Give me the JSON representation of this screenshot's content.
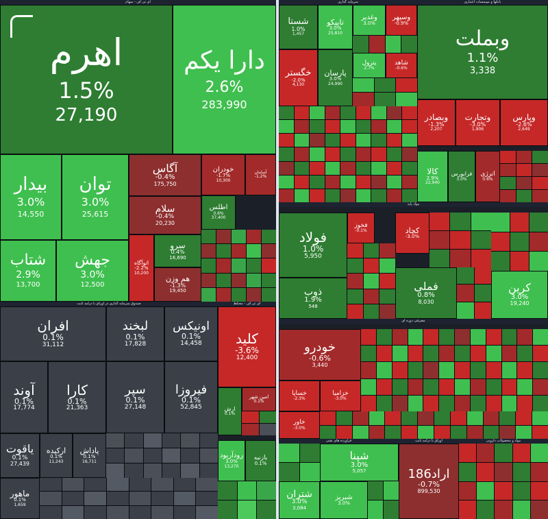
{
  "sections": {
    "top_left": "ای تی اف - سهام",
    "top_right": "بانکها و موسسات اعتباری",
    "top_mid": "سرمایه گذاری",
    "funds": "صندوق سرمایه گذاری در اوراق با درآمد ثابت",
    "base_metals": "فلزات اساسی",
    "car": "خودرو و ساخت قطعات",
    "chemicals": "محصولات شیمیایی",
    "mid_center": "مواد پایه",
    "oil": "فراورده های نفتی",
    "iron": "آهن و فولاد",
    "consumer": "مصرفی دوره ای",
    "fixed": "اوراق با درآمد ثابت",
    "cement": "سیمان، آهک و گچ",
    "pharma": "مواد و محصولات دارویی",
    "etf2": "ای تی اف - مختلط"
  },
  "tiles": {
    "ahrom": {
      "name": "اهرم",
      "pct": "1.5%",
      "val": "27,190"
    },
    "daraykom": {
      "name": "دارا یکم",
      "pct": "2.6%",
      "val": "283,990"
    },
    "bidar": {
      "name": "بیدار",
      "pct": "3.0%",
      "val": "14,550"
    },
    "tavan": {
      "name": "توان",
      "pct": "3.0%",
      "val": "25,615"
    },
    "shetab": {
      "name": "شتاب",
      "pct": "2.9%",
      "val": "13,700"
    },
    "jahesh": {
      "name": "جهش",
      "pct": "3.0%",
      "val": "12,500"
    },
    "agas": {
      "name": "آگاس",
      "pct": "-0.4%",
      "val": "175,750"
    },
    "salam": {
      "name": "سلام",
      "pct": "-0.4%",
      "val": "20,230"
    },
    "sarv": {
      "name": "سرو",
      "pct": "0.4%",
      "val": "16,690"
    },
    "hamvazn": {
      "name": "هم وزن",
      "pct": "-1.3%",
      "val": "19,450"
    },
    "atogah": {
      "name": "اتوآگاه",
      "pct": "-2.2%",
      "val": "10,200"
    },
    "khodran": {
      "name": "خودران",
      "pct": "-1.7%",
      "val": "10,300"
    },
    "atlas": {
      "name": "اطلس",
      "pct": "0.6%",
      "val": "37,400"
    },
    "kamand_bz": {
      "name": "آسامان",
      "pct": "-1.2%",
      "val": ""
    },
    "afran": {
      "name": "افران",
      "pct": "0.1%",
      "val": "31,112"
    },
    "labkhand": {
      "name": "لبخند",
      "pct": "0.1%",
      "val": "17,828"
    },
    "onyx": {
      "name": "اونیکس",
      "pct": "0.1%",
      "val": "14,458"
    },
    "avand": {
      "name": "آوند",
      "pct": "0.1%",
      "val": "17,774"
    },
    "kara": {
      "name": "کارا",
      "pct": "0.1%",
      "val": "21,363"
    },
    "separ": {
      "name": "سپر",
      "pct": "0.1%",
      "val": "27,148"
    },
    "firoza": {
      "name": "فیروزا",
      "pct": "0.1%",
      "val": "52,845"
    },
    "yaqut": {
      "name": "یاقوت",
      "pct": "0.1%",
      "val": "27,439"
    },
    "arkideh": {
      "name": "ارکیده",
      "pct": "0.1%",
      "val": "11,243"
    },
    "padash": {
      "name": "پاداش",
      "pct": "0.1%",
      "val": "16,711"
    },
    "mahour": {
      "name": "ماهور",
      "pct": "0.1%",
      "val": "1,659"
    },
    "kalid": {
      "name": "کلید",
      "pct": "-3.6%",
      "val": "12,400"
    },
    "vebmelat": {
      "name": "وبملت",
      "pct": "1.1%",
      "val": "3,338"
    },
    "shasta": {
      "name": "شستا",
      "pct": "1.0%",
      "val": "1,457"
    },
    "tapiko": {
      "name": "تاپیکو",
      "pct": "3.0%",
      "val": "25,810"
    },
    "vaghdir": {
      "name": "وغدیر",
      "pct": "3.0%",
      "val": ""
    },
    "vasepeh": {
      "name": "وسپهر",
      "pct": "-0.9%",
      "val": ""
    },
    "khgostar": {
      "name": "خگستر",
      "pct": "-2.0%",
      "val": "4,130"
    },
    "parsan": {
      "name": "پارسان",
      "pct": "3.0%",
      "val": "24,990"
    },
    "tepetrol": {
      "name": "پترول",
      "pct": "2.7%",
      "val": ""
    },
    "shabandar": {
      "name": "شاهد",
      "pct": "-0.6%",
      "val": ""
    },
    "vebsader": {
      "name": "وبصادر",
      "pct": "-1.3%",
      "val": "2,207"
    },
    "vtejarat": {
      "name": "وتجارت",
      "pct": "-3.0%",
      "val": "1,906"
    },
    "vpars": {
      "name": "وپارس",
      "pct": "-2.6%",
      "val": "2,649"
    },
    "kala": {
      "name": "کالا",
      "pct": "2.9%",
      "val": "22,940"
    },
    "farabours": {
      "name": "فرابورس",
      "pct": "3.0%",
      "val": ""
    },
    "anrzhi": {
      "name": "انرژی",
      "pct": "0.6%",
      "val": ""
    },
    "foolad": {
      "name": "فولاد",
      "pct": "1.0%",
      "val": "5,950"
    },
    "fakhor": {
      "name": "فخوز",
      "pct": "-0.1%",
      "val": ""
    },
    "kegadeh": {
      "name": "کچاد",
      "pct": "-3.0%",
      "val": ""
    },
    "zob": {
      "name": "ذوب",
      "pct": "1.9%",
      "val": "548"
    },
    "femeli": {
      "name": "فملی",
      "pct": "0.8%",
      "val": "8,030"
    },
    "karin": {
      "name": "کرین",
      "pct": "3.0%",
      "val": "19,240"
    },
    "khodro": {
      "name": "خودرو",
      "pct": "-0.6%",
      "val": "3,440"
    },
    "khsapa": {
      "name": "خساپا",
      "pct": "-2.3%",
      "val": ""
    },
    "khzamiya": {
      "name": "خزامیا",
      "pct": "-3.0%",
      "val": ""
    },
    "khavar": {
      "name": "خاور",
      "pct": "-3.0%",
      "val": ""
    },
    "arad186": {
      "name": "اراد186",
      "pct": "-0.7%",
      "val": "899,530"
    },
    "shepna": {
      "name": "شپنا",
      "pct": "3.0%",
      "val": "5,057"
    },
    "shetran": {
      "name": "شتران",
      "pct": "3.0%",
      "val": "3,084"
    },
    "shebriz": {
      "name": "شبریز",
      "pct": "3.0%",
      "val": ""
    },
    "baznbeh": {
      "name": "بازنبه",
      "pct": "0.1%",
      "val": ""
    },
    "roodaryud": {
      "name": "رودآریود",
      "pct": "3.0%",
      "val": "13,270"
    },
    "hamyan": {
      "name": "امین شهر",
      "pct": "0.1%",
      "val": ""
    },
    "arash": {
      "name": "ارش",
      "pct": "0.1%",
      "val": ""
    }
  },
  "icons": {
    "corner": "corner-bracket-icon"
  }
}
